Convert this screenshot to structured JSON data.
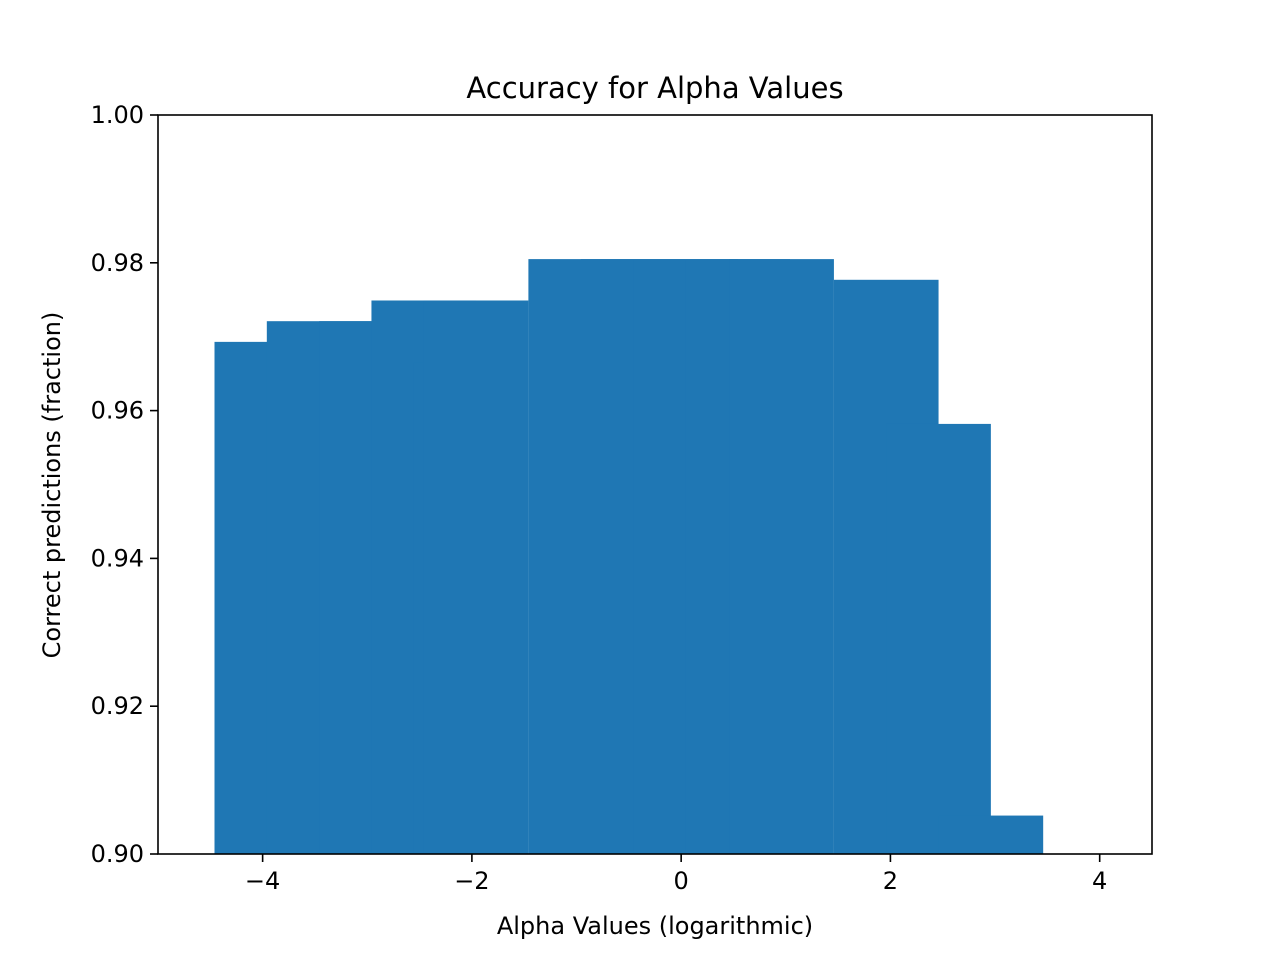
{
  "chart_data": {
    "type": "bar",
    "title": "Accuracy for Alpha Values",
    "xlabel": "Alpha Values (logarithmic)",
    "ylabel": "Correct predictions (fraction)",
    "xlim": [
      -5,
      4.5
    ],
    "ylim": [
      0.9,
      1.0
    ],
    "bar_width": 1,
    "color": "#1f77b4",
    "grid": false,
    "x_ticks": [
      {
        "value": -4,
        "label": "−4"
      },
      {
        "value": -2,
        "label": "−2"
      },
      {
        "value": 0,
        "label": "0"
      },
      {
        "value": 2,
        "label": "2"
      },
      {
        "value": 4,
        "label": "4"
      }
    ],
    "y_ticks": [
      {
        "value": 0.9,
        "label": "0.90"
      },
      {
        "value": 0.92,
        "label": "0.92"
      },
      {
        "value": 0.94,
        "label": "0.94"
      },
      {
        "value": 0.96,
        "label": "0.96"
      },
      {
        "value": 0.98,
        "label": "0.98"
      },
      {
        "value": 1.0,
        "label": "1.00"
      }
    ],
    "points": [
      {
        "x": -3.96,
        "y": 0.9693
      },
      {
        "x": -3.46,
        "y": 0.9721
      },
      {
        "x": -2.96,
        "y": 0.9721
      },
      {
        "x": -2.46,
        "y": 0.9749
      },
      {
        "x": -2.06,
        "y": 0.9665
      },
      {
        "x": -1.96,
        "y": 0.9749
      },
      {
        "x": -0.96,
        "y": 0.9805
      },
      {
        "x": -0.46,
        "y": 0.9805
      },
      {
        "x": 0.04,
        "y": 0.9805
      },
      {
        "x": 0.54,
        "y": 0.9805
      },
      {
        "x": 0.96,
        "y": 0.9805
      },
      {
        "x": 1.96,
        "y": 0.9777
      },
      {
        "x": 2.46,
        "y": 0.9582
      },
      {
        "x": 2.96,
        "y": 0.9052
      }
    ]
  }
}
